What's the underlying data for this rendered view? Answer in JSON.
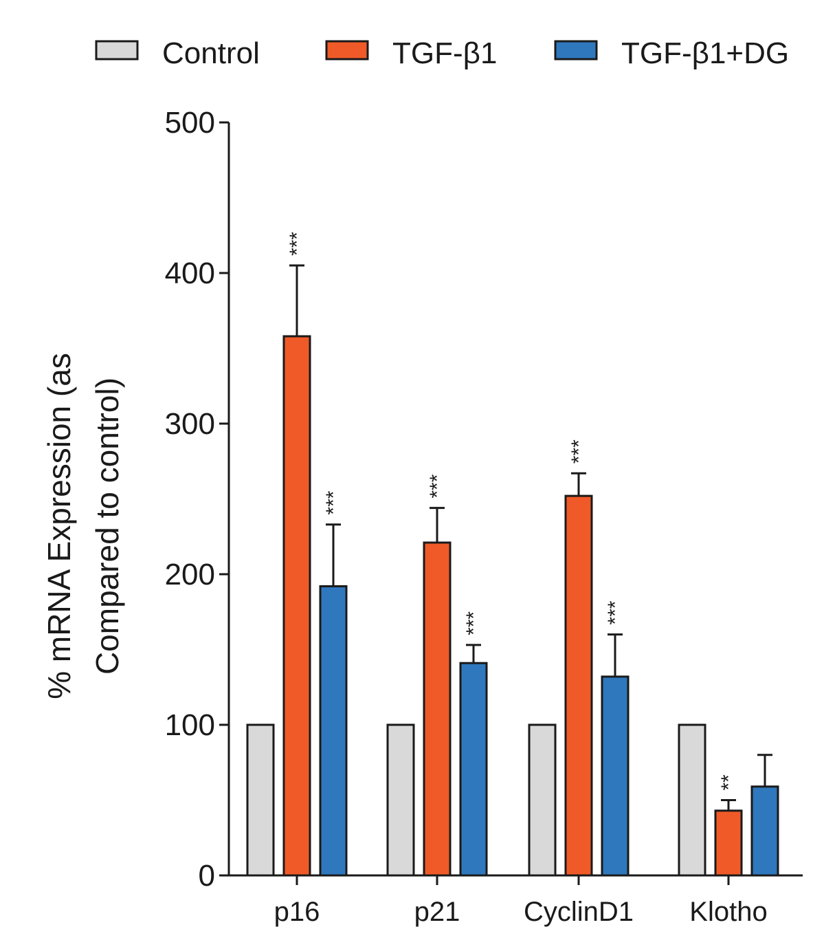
{
  "chart_data": {
    "type": "bar",
    "categories": [
      "p16",
      "p21",
      "CyclinD1",
      "Klotho"
    ],
    "series": [
      {
        "name": "Control",
        "values": [
          100,
          100,
          100,
          100
        ],
        "errors": [
          0,
          0,
          0,
          0
        ],
        "significance": [
          "",
          "",
          "",
          ""
        ],
        "color": "#d9d9d9"
      },
      {
        "name": "TGF-β1",
        "values": [
          358,
          221,
          252,
          43
        ],
        "errors": [
          47,
          23,
          15,
          7
        ],
        "significance": [
          "***",
          "***",
          "***",
          "**"
        ],
        "color": "#f05a28"
      },
      {
        "name": "TGF-β1+DG",
        "values": [
          192,
          141,
          132,
          59
        ],
        "errors": [
          41,
          12,
          28,
          21
        ],
        "significance": [
          "***",
          "***",
          "***",
          ""
        ],
        "color": "#2f78bd"
      }
    ],
    "ylabel_lines": [
      "% mRNA Expression (as",
      "Compared to control)"
    ],
    "ylim": [
      0,
      500
    ],
    "yticks": [
      0,
      100,
      200,
      300,
      400,
      500
    ],
    "legend_position": "top",
    "grid": false,
    "bar_outline": "#1a1a1a"
  }
}
